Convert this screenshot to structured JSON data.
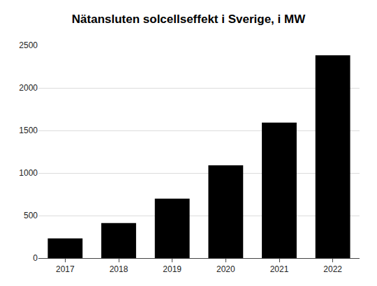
{
  "chart_data": {
    "type": "bar",
    "title": "Nätansluten solcellseffekt i Sverige, i MW",
    "categories": [
      "2017",
      "2018",
      "2019",
      "2020",
      "2021",
      "2022"
    ],
    "values": [
      231,
      411,
      698,
      1090,
      1593,
      2383
    ],
    "color": "#000000",
    "ylim": [
      0,
      2500
    ],
    "yticks": [
      0,
      500,
      1000,
      1500,
      2000,
      2500
    ],
    "grid": true
  }
}
